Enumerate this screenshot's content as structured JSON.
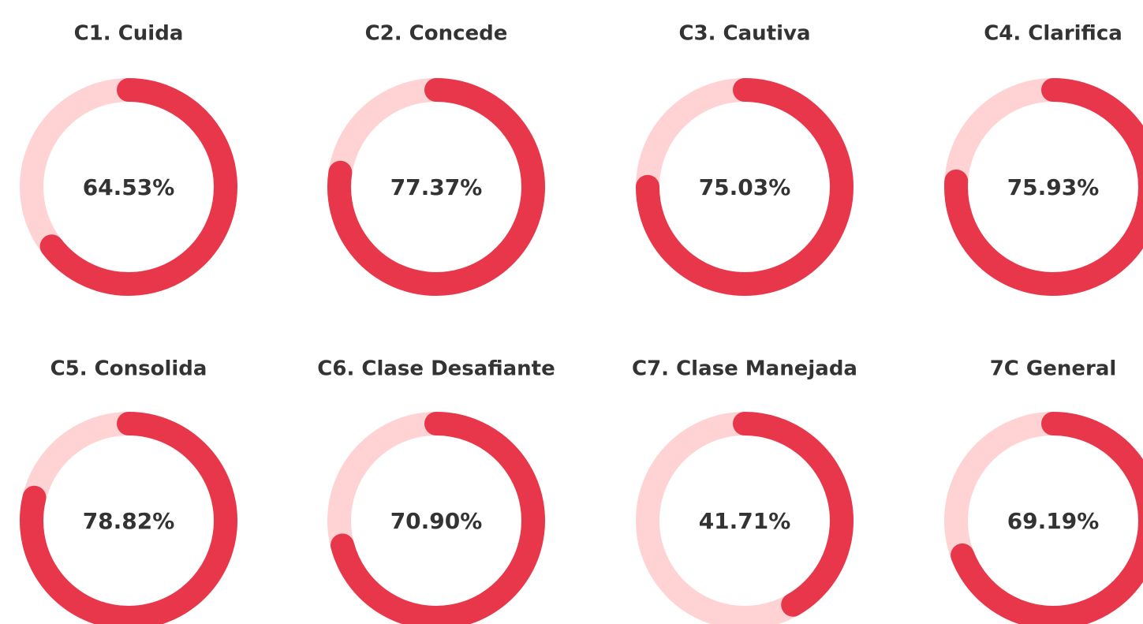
{
  "chart_data": [
    {
      "type": "donut",
      "title": "C1. Cuida",
      "values": [
        64.53
      ],
      "value_labels": [
        "64.53%"
      ],
      "color": "#e8374a",
      "track_color": "#ffd3d4"
    },
    {
      "type": "donut",
      "title": "C2. Concede",
      "values": [
        77.37
      ],
      "value_labels": [
        "77.37%"
      ],
      "color": "#e8374a",
      "track_color": "#ffd3d4"
    },
    {
      "type": "donut",
      "title": "C3. Cautiva",
      "values": [
        75.03
      ],
      "value_labels": [
        "75.03%"
      ],
      "color": "#e8374a",
      "track_color": "#ffd3d4"
    },
    {
      "type": "donut",
      "title": "C4. Clarifica",
      "values": [
        75.93
      ],
      "value_labels": [
        "75.93%"
      ],
      "color": "#e8374a",
      "track_color": "#ffd3d4"
    },
    {
      "type": "donut",
      "title": "C5. Consolida",
      "values": [
        78.82
      ],
      "value_labels": [
        "78.82%"
      ],
      "color": "#e8374a",
      "track_color": "#ffd3d4"
    },
    {
      "type": "donut",
      "title": "C6. Clase Desafiante",
      "values": [
        70.9
      ],
      "value_labels": [
        "70.90%"
      ],
      "color": "#e8374a",
      "track_color": "#ffd3d4"
    },
    {
      "type": "donut",
      "title": "C7. Clase Manejada",
      "values": [
        41.71
      ],
      "value_labels": [
        "41.71%"
      ],
      "color": "#e8374a",
      "track_color": "#ffd3d4"
    },
    {
      "type": "donut",
      "title": "7C General",
      "values": [
        69.19
      ],
      "value_labels": [
        "69.19%"
      ],
      "color": "#e8374a",
      "track_color": "#ffd3d4"
    }
  ]
}
